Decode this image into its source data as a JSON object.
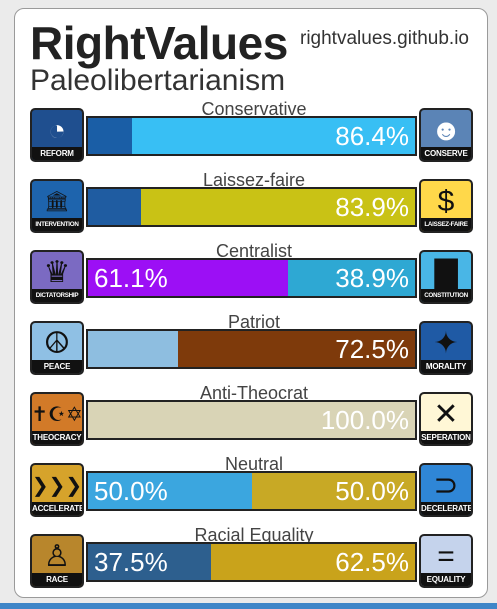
{
  "header": {
    "title": "RightValues",
    "site": "rightvalues.github.io",
    "ideology": "Paleolibertarianism"
  },
  "axes": [
    {
      "label": "Conservative",
      "left": {
        "caption": "REFORM",
        "icon": "reform-icon",
        "glyph": "◔",
        "bg": "#1f4f8f",
        "fg": "#ffffff",
        "color": "#1a5ea6",
        "pct": null,
        "value": 13.6
      },
      "right": {
        "caption": "CONSERVE",
        "icon": "conserve-icon",
        "glyph": "☻",
        "bg": "#5b84b6",
        "fg": "#ffffff",
        "color": "#38bff4",
        "pct": "86.4%",
        "value": 86.4
      }
    },
    {
      "label": "Laissez-faire",
      "left": {
        "caption": "INTERVENTION",
        "icon": "bank-icon",
        "glyph": "🏛",
        "bg": "#1e64ad",
        "fg": "#111111",
        "color": "#1f5ca1",
        "pct": null,
        "value": 16.1
      },
      "right": {
        "caption": "LAISSEZ-FAIRE",
        "icon": "dollar-icon",
        "glyph": "$",
        "bg": "#ffd84a",
        "fg": "#111111",
        "color": "#c9c215",
        "pct": "83.9%",
        "value": 83.9
      }
    },
    {
      "label": "Centralist",
      "left": {
        "caption": "DICTATORSHIP",
        "icon": "crown-icon",
        "glyph": "♛",
        "bg": "#7b6ac2",
        "fg": "#111111",
        "color": "#9c0ff5",
        "pct": "61.1%",
        "value": 61.1
      },
      "right": {
        "caption": "CONSTITUTION",
        "icon": "ballot-box-icon",
        "glyph": "▇",
        "bg": "#49b6e6",
        "fg": "#111111",
        "color": "#2ea8d3",
        "pct": "38.9%",
        "value": 38.9
      }
    },
    {
      "label": "Patriot",
      "left": {
        "caption": "PEACE",
        "icon": "peace-icon",
        "glyph": "☮",
        "bg": "#8fc0e4",
        "fg": "#111111",
        "color": "#8ebee0",
        "pct": null,
        "value": 27.5
      },
      "right": {
        "caption": "MORALITY",
        "icon": "compass-icon",
        "glyph": "✦",
        "bg": "#1f5aa5",
        "fg": "#111111",
        "color": "#7e3a0b",
        "pct": "72.5%",
        "value": 72.5
      }
    },
    {
      "label": "Anti-Theocrat",
      "left": {
        "caption": "THEOCRACY",
        "icon": "religion-icon",
        "glyph": "✝☪✡",
        "bg": "#d27a28",
        "fg": "#111111",
        "color": "#d9d4b6",
        "pct": null,
        "value": 0
      },
      "right": {
        "caption": "SEPERATION",
        "icon": "x-icon",
        "glyph": "✕",
        "bg": "#fff7d6",
        "fg": "#111111",
        "color": "#d9d4b6",
        "pct": "100.0%",
        "value": 100
      }
    },
    {
      "label": "Neutral",
      "left": {
        "caption": "ACCELERATE",
        "icon": "fast-forward-icon",
        "glyph": "❯❯❯",
        "bg": "#d6a32b",
        "fg": "#111111",
        "color": "#3ba6df",
        "pct": "50.0%",
        "value": 50
      },
      "right": {
        "caption": "DECELERATE",
        "icon": "u-turn-icon",
        "glyph": "⊃",
        "bg": "#2f86d6",
        "fg": "#111111",
        "color": "#c8a925",
        "pct": "50.0%",
        "value": 50
      }
    },
    {
      "label": "Racial Equality",
      "left": {
        "caption": "RACE",
        "icon": "person-icon",
        "glyph": "♙",
        "bg": "#b8862c",
        "fg": "#111111",
        "color": "#2d5f8e",
        "pct": "37.5%",
        "value": 37.5
      },
      "right": {
        "caption": "EQUALITY",
        "icon": "equals-icon",
        "glyph": "=",
        "bg": "#c5d3ec",
        "fg": "#111111",
        "color": "#c9a31b",
        "pct": "62.5%",
        "value": 62.5
      }
    }
  ]
}
